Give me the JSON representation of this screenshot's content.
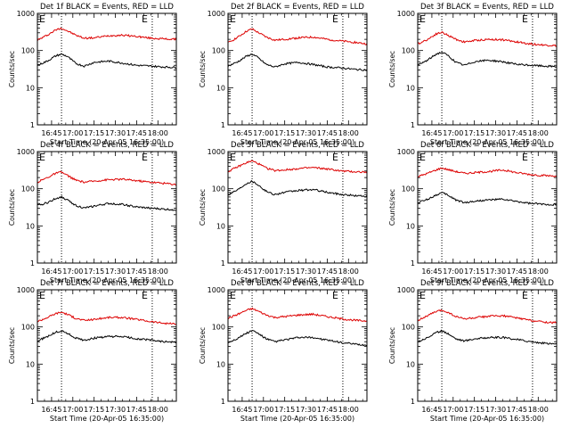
{
  "figure": {
    "ylabel": "Counts/sec",
    "xlabel": "Start Time (20-Apr-05 16:35:00)",
    "time_ticks": [
      "16:45",
      "17:00",
      "17:15",
      "17:30",
      "17:45",
      "18:00"
    ],
    "y_ticks": [
      "1",
      "10",
      "100",
      "1000"
    ],
    "colors": {
      "events": "#000000",
      "lld": "#dd0000",
      "axes": "#000000"
    }
  },
  "chart_data": [
    {
      "type": "line",
      "title": "Det 1f BLACK = Events, RED = LLD",
      "xlabel": "Start Time (20-Apr-05 16:35:00)",
      "ylabel": "Counts/sec",
      "xlim": [
        "16:35",
        "18:13"
      ],
      "ylim": [
        1,
        1000
      ],
      "yscale": "log",
      "markers": [
        "E",
        "E"
      ],
      "marker_lines": [
        "16:52",
        "17:56"
      ],
      "x": [
        "16:35",
        "16:42",
        "16:48",
        "16:52",
        "16:56",
        "17:02",
        "17:08",
        "17:15",
        "17:25",
        "17:35",
        "17:45",
        "17:55",
        "18:05",
        "18:13"
      ],
      "series": [
        {
          "name": "LLD",
          "color": "#dd0000",
          "values": [
            190,
            260,
            360,
            400,
            340,
            260,
            215,
            220,
            250,
            260,
            240,
            215,
            205,
            200
          ]
        },
        {
          "name": "Events",
          "color": "#000000",
          "values": [
            40,
            52,
            72,
            80,
            70,
            45,
            38,
            48,
            52,
            46,
            40,
            38,
            36,
            35
          ]
        }
      ]
    },
    {
      "type": "line",
      "title": "Det 2f BLACK = Events, RED = LLD",
      "xlabel": "Start Time (20-Apr-05 16:35:00)",
      "ylabel": "Counts/sec",
      "xlim": [
        "16:35",
        "18:13"
      ],
      "ylim": [
        1,
        1000
      ],
      "yscale": "log",
      "markers": [
        "E",
        "E"
      ],
      "marker_lines": [
        "16:52",
        "17:56"
      ],
      "x": [
        "16:35",
        "16:42",
        "16:48",
        "16:52",
        "16:56",
        "17:02",
        "17:08",
        "17:15",
        "17:25",
        "17:35",
        "17:45",
        "17:55",
        "18:05",
        "18:13"
      ],
      "series": [
        {
          "name": "LLD",
          "color": "#dd0000",
          "values": [
            160,
            230,
            330,
            380,
            310,
            230,
            190,
            200,
            220,
            230,
            200,
            180,
            165,
            150
          ]
        },
        {
          "name": "Events",
          "color": "#000000",
          "values": [
            38,
            50,
            70,
            80,
            65,
            42,
            36,
            44,
            48,
            42,
            36,
            34,
            31,
            30
          ]
        }
      ]
    },
    {
      "type": "line",
      "title": "Det 3f BLACK = Events, RED = LLD",
      "xlabel": "Start Time (20-Apr-05 16:35:00)",
      "ylabel": "Counts/sec",
      "xlim": [
        "16:35",
        "18:13"
      ],
      "ylim": [
        1,
        1000
      ],
      "yscale": "log",
      "markers": [
        "E",
        "E"
      ],
      "marker_lines": [
        "16:52",
        "17:56"
      ],
      "x": [
        "16:35",
        "16:42",
        "16:48",
        "16:52",
        "16:56",
        "17:02",
        "17:08",
        "17:15",
        "17:25",
        "17:35",
        "17:45",
        "17:55",
        "18:05",
        "18:13"
      ],
      "series": [
        {
          "name": "LLD",
          "color": "#dd0000",
          "values": [
            150,
            200,
            280,
            310,
            260,
            200,
            170,
            185,
            200,
            195,
            170,
            150,
            140,
            135
          ]
        },
        {
          "name": "Events",
          "color": "#000000",
          "values": [
            40,
            55,
            80,
            90,
            75,
            48,
            40,
            50,
            55,
            50,
            42,
            40,
            38,
            37
          ]
        }
      ]
    },
    {
      "type": "line",
      "title": "Det 4f BLACK = Events, RED = LLD",
      "xlabel": "Start Time (20-Apr-05 16:35:00)",
      "ylabel": "Counts/sec",
      "xlim": [
        "16:35",
        "18:13"
      ],
      "ylim": [
        1,
        1000
      ],
      "yscale": "log",
      "markers": [
        "E",
        "E"
      ],
      "marker_lines": [
        "16:52",
        "17:56"
      ],
      "x": [
        "16:35",
        "16:42",
        "16:48",
        "16:52",
        "16:56",
        "17:02",
        "17:08",
        "17:15",
        "17:25",
        "17:35",
        "17:45",
        "17:55",
        "18:05",
        "18:13"
      ],
      "series": [
        {
          "name": "LLD",
          "color": "#dd0000",
          "values": [
            150,
            200,
            260,
            280,
            230,
            170,
            150,
            160,
            175,
            180,
            165,
            150,
            140,
            130
          ]
        },
        {
          "name": "Events",
          "color": "#000000",
          "values": [
            35,
            42,
            55,
            60,
            50,
            36,
            30,
            34,
            40,
            38,
            32,
            30,
            28,
            27
          ]
        }
      ]
    },
    {
      "type": "line",
      "title": "Det 5f BLACK = Events, RED = LLD",
      "xlabel": "Start Time (20-Apr-05 16:35:00)",
      "ylabel": "Counts/sec",
      "xlim": [
        "16:35",
        "18:13"
      ],
      "ylim": [
        1,
        1000
      ],
      "yscale": "log",
      "markers": [
        "E",
        "E"
      ],
      "marker_lines": [
        "16:52",
        "17:56"
      ],
      "x": [
        "16:35",
        "16:42",
        "16:48",
        "16:52",
        "16:56",
        "17:02",
        "17:08",
        "17:15",
        "17:25",
        "17:35",
        "17:45",
        "17:55",
        "18:05",
        "18:13"
      ],
      "series": [
        {
          "name": "LLD",
          "color": "#dd0000",
          "values": [
            290,
            390,
            500,
            560,
            480,
            360,
            310,
            320,
            350,
            370,
            340,
            300,
            285,
            280
          ]
        },
        {
          "name": "Events",
          "color": "#000000",
          "values": [
            70,
            95,
            140,
            160,
            130,
            85,
            70,
            80,
            90,
            95,
            80,
            70,
            65,
            63
          ]
        }
      ]
    },
    {
      "type": "line",
      "title": "Det 6f BLACK = Events, RED = LLD",
      "xlabel": "Start Time (20-Apr-05 16:35:00)",
      "ylabel": "Counts/sec",
      "xlim": [
        "16:35",
        "18:13"
      ],
      "ylim": [
        1,
        1000
      ],
      "yscale": "log",
      "markers": [
        "E",
        "E"
      ],
      "marker_lines": [
        "16:52",
        "17:56"
      ],
      "x": [
        "16:35",
        "16:42",
        "16:48",
        "16:52",
        "16:56",
        "17:02",
        "17:08",
        "17:15",
        "17:25",
        "17:35",
        "17:45",
        "17:55",
        "18:05",
        "18:13"
      ],
      "series": [
        {
          "name": "LLD",
          "color": "#dd0000",
          "values": [
            210,
            260,
            320,
            360,
            330,
            290,
            260,
            270,
            290,
            320,
            270,
            240,
            225,
            220
          ]
        },
        {
          "name": "Events",
          "color": "#000000",
          "values": [
            42,
            52,
            68,
            78,
            68,
            50,
            42,
            46,
            50,
            52,
            45,
            40,
            38,
            37
          ]
        }
      ]
    },
    {
      "type": "line",
      "title": "Det 7f BLACK = Events, RED = LLD",
      "xlabel": "Start Time (20-Apr-05 16:35:00)",
      "ylabel": "Counts/sec",
      "xlim": [
        "16:35",
        "18:13"
      ],
      "ylim": [
        1,
        1000
      ],
      "yscale": "log",
      "markers": [
        "E",
        "E"
      ],
      "marker_lines": [
        "16:52",
        "17:56"
      ],
      "x": [
        "16:35",
        "16:42",
        "16:48",
        "16:52",
        "16:56",
        "17:02",
        "17:08",
        "17:15",
        "17:25",
        "17:35",
        "17:45",
        "17:55",
        "18:05",
        "18:13"
      ],
      "series": [
        {
          "name": "LLD",
          "color": "#dd0000",
          "values": [
            140,
            180,
            230,
            250,
            220,
            170,
            150,
            160,
            180,
            180,
            160,
            140,
            125,
            120
          ]
        },
        {
          "name": "Events",
          "color": "#000000",
          "values": [
            42,
            55,
            72,
            78,
            68,
            50,
            44,
            50,
            55,
            55,
            48,
            44,
            40,
            38
          ]
        }
      ]
    },
    {
      "type": "line",
      "title": "Det 8f BLACK = Events, RED = LLD",
      "xlabel": "Start Time (20-Apr-05 16:35:00)",
      "ylabel": "Counts/sec",
      "xlim": [
        "16:35",
        "18:13"
      ],
      "ylim": [
        1,
        1000
      ],
      "yscale": "log",
      "markers": [
        "E",
        "E"
      ],
      "marker_lines": [
        "16:52",
        "17:56"
      ],
      "x": [
        "16:35",
        "16:42",
        "16:48",
        "16:52",
        "16:56",
        "17:02",
        "17:08",
        "17:15",
        "17:25",
        "17:35",
        "17:45",
        "17:55",
        "18:05",
        "18:13"
      ],
      "series": [
        {
          "name": "LLD",
          "color": "#dd0000",
          "values": [
            170,
            220,
            280,
            310,
            270,
            210,
            180,
            190,
            210,
            220,
            190,
            165,
            150,
            145
          ]
        },
        {
          "name": "Events",
          "color": "#000000",
          "values": [
            38,
            50,
            68,
            80,
            68,
            48,
            40,
            45,
            52,
            52,
            44,
            38,
            34,
            32
          ]
        }
      ]
    },
    {
      "type": "line",
      "title": "Det 9f BLACK = Events, RED = LLD",
      "xlabel": "Start Time (20-Apr-05 16:35:00)",
      "ylabel": "Counts/sec",
      "xlim": [
        "16:35",
        "18:13"
      ],
      "ylim": [
        1,
        1000
      ],
      "yscale": "log",
      "markers": [
        "E",
        "E"
      ],
      "marker_lines": [
        "16:52",
        "17:56"
      ],
      "x": [
        "16:35",
        "16:42",
        "16:48",
        "16:52",
        "16:56",
        "17:02",
        "17:08",
        "17:15",
        "17:25",
        "17:35",
        "17:45",
        "17:55",
        "18:05",
        "18:13"
      ],
      "series": [
        {
          "name": "LLD",
          "color": "#dd0000",
          "values": [
            150,
            200,
            260,
            280,
            250,
            190,
            165,
            175,
            195,
            200,
            175,
            150,
            135,
            130
          ]
        },
        {
          "name": "Events",
          "color": "#000000",
          "values": [
            40,
            52,
            70,
            78,
            68,
            48,
            42,
            48,
            52,
            52,
            46,
            40,
            36,
            35
          ]
        }
      ]
    }
  ]
}
